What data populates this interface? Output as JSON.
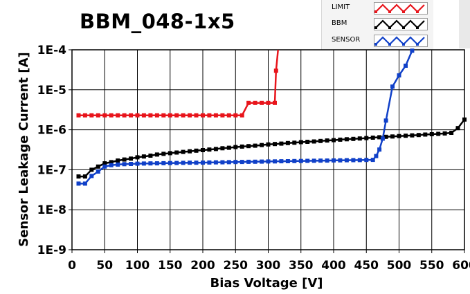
{
  "chart_data": {
    "type": "line",
    "title": "BBM_048-1x5",
    "xlabel": "Bias Voltage [V]",
    "ylabel": "Sensor Leakage Current [A]",
    "x_scale": "linear",
    "y_scale": "log",
    "xlim": [
      0,
      600
    ],
    "ylim": [
      1e-09,
      0.0001
    ],
    "grid": true,
    "legend_position": "top-right",
    "x_ticks": [
      "0",
      "50",
      "100",
      "150",
      "200",
      "250",
      "300",
      "350",
      "400",
      "450",
      "500",
      "550",
      "600"
    ],
    "y_ticks": [
      "1E-9",
      "1E-8",
      "1E-7",
      "1E-6",
      "1E-5",
      "1E-4"
    ],
    "series": [
      {
        "name": "LIMIT",
        "color": "#e8141b",
        "x": [
          10,
          20,
          30,
          40,
          50,
          60,
          70,
          80,
          90,
          100,
          110,
          120,
          130,
          140,
          150,
          160,
          170,
          180,
          190,
          200,
          210,
          220,
          230,
          240,
          250,
          260,
          270,
          280,
          290,
          300,
          310,
          312,
          315
        ],
        "y": [
          2.3e-06,
          2.3e-06,
          2.3e-06,
          2.3e-06,
          2.3e-06,
          2.3e-06,
          2.3e-06,
          2.3e-06,
          2.3e-06,
          2.3e-06,
          2.3e-06,
          2.3e-06,
          2.3e-06,
          2.3e-06,
          2.3e-06,
          2.3e-06,
          2.3e-06,
          2.3e-06,
          2.3e-06,
          2.3e-06,
          2.3e-06,
          2.3e-06,
          2.3e-06,
          2.3e-06,
          2.3e-06,
          2.3e-06,
          4.7e-06,
          4.7e-06,
          4.7e-06,
          4.7e-06,
          4.7e-06,
          3e-05,
          0.0001
        ]
      },
      {
        "name": "BBM",
        "color": "#000000",
        "x": [
          10,
          20,
          30,
          40,
          50,
          60,
          70,
          80,
          90,
          100,
          110,
          120,
          130,
          140,
          150,
          160,
          170,
          180,
          190,
          200,
          210,
          220,
          230,
          240,
          250,
          260,
          270,
          280,
          290,
          300,
          310,
          320,
          330,
          340,
          350,
          360,
          370,
          380,
          390,
          400,
          410,
          420,
          430,
          440,
          450,
          460,
          470,
          480,
          490,
          500,
          510,
          520,
          530,
          540,
          550,
          560,
          570,
          580,
          590,
          600
        ],
        "y": [
          6.8e-08,
          6.8e-08,
          1e-07,
          1.2e-07,
          1.45e-07,
          1.55e-07,
          1.7e-07,
          1.8e-07,
          1.9e-07,
          2.05e-07,
          2.15e-07,
          2.25e-07,
          2.4e-07,
          2.5e-07,
          2.6e-07,
          2.7e-07,
          2.8e-07,
          2.9e-07,
          3e-07,
          3.1e-07,
          3.2e-07,
          3.3e-07,
          3.45e-07,
          3.55e-07,
          3.7e-07,
          3.8e-07,
          3.9e-07,
          4e-07,
          4.15e-07,
          4.3e-07,
          4.4e-07,
          4.5e-07,
          4.65e-07,
          4.75e-07,
          4.9e-07,
          5e-07,
          5.1e-07,
          5.25e-07,
          5.4e-07,
          5.5e-07,
          5.65e-07,
          5.8e-07,
          5.9e-07,
          6.05e-07,
          6.2e-07,
          6.35e-07,
          6.5e-07,
          6.65e-07,
          6.8e-07,
          6.95e-07,
          7.1e-07,
          7.25e-07,
          7.4e-07,
          7.6e-07,
          7.75e-07,
          7.9e-07,
          8.1e-07,
          8.4e-07,
          1.1e-06,
          1.8e-06
        ]
      },
      {
        "name": "SENSOR",
        "color": "#1040c8",
        "x": [
          10,
          20,
          30,
          40,
          50,
          60,
          70,
          80,
          90,
          100,
          110,
          120,
          130,
          140,
          150,
          160,
          170,
          180,
          190,
          200,
          210,
          220,
          230,
          240,
          250,
          260,
          270,
          280,
          290,
          300,
          310,
          320,
          330,
          340,
          350,
          360,
          370,
          380,
          390,
          400,
          410,
          420,
          430,
          440,
          450,
          460,
          465,
          470,
          475,
          480,
          490,
          500,
          510,
          520
        ],
        "y": [
          4.5e-08,
          4.5e-08,
          7e-08,
          9e-08,
          1.2e-07,
          1.3e-07,
          1.35e-07,
          1.38e-07,
          1.4e-07,
          1.42e-07,
          1.43e-07,
          1.44e-07,
          1.45e-07,
          1.46e-07,
          1.47e-07,
          1.48e-07,
          1.49e-07,
          1.5e-07,
          1.5e-07,
          1.51e-07,
          1.52e-07,
          1.53e-07,
          1.54e-07,
          1.55e-07,
          1.56e-07,
          1.57e-07,
          1.58e-07,
          1.59e-07,
          1.6e-07,
          1.61e-07,
          1.62e-07,
          1.63e-07,
          1.64e-07,
          1.65e-07,
          1.66e-07,
          1.67e-07,
          1.68e-07,
          1.69e-07,
          1.7e-07,
          1.71e-07,
          1.72e-07,
          1.73e-07,
          1.74e-07,
          1.75e-07,
          1.76e-07,
          1.77e-07,
          2.2e-07,
          3.2e-07,
          6e-07,
          1.7e-06,
          1.2e-05,
          2.3e-05,
          4e-05,
          9.5e-05
        ]
      }
    ]
  }
}
